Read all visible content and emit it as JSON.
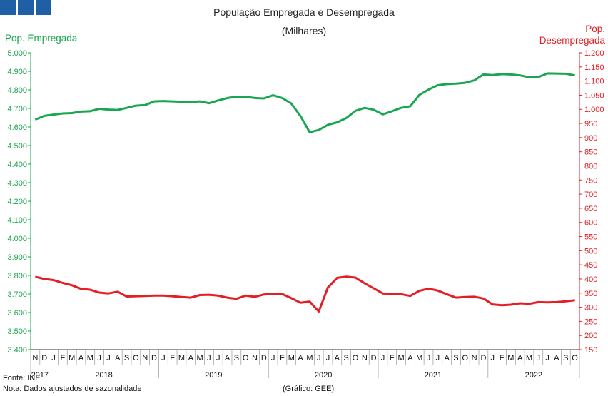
{
  "header": {
    "title": "População Empregada e Desempregada",
    "subtitle": "(Milhares)",
    "left_axis_label": "Pop. Empregada",
    "right_axis_label_line1": "Pop.",
    "right_axis_label_line2": "Desempregada"
  },
  "footer": {
    "source": "Fonte: INE",
    "note": "Nota: Dados ajustados de sazonalidade",
    "credit": "(Gráfico: GEE)"
  },
  "colors": {
    "employed": "#1aa650",
    "unemployed": "#e31e24",
    "logo": "#1f5fa5"
  },
  "chart_data": {
    "type": "line",
    "title": "População Empregada e Desempregada",
    "subtitle": "(Milhares)",
    "y_left": {
      "label": "Pop. Empregada",
      "range": [
        3400,
        5000
      ],
      "ticks": [
        "3.400",
        "3.500",
        "3.600",
        "3.700",
        "3.800",
        "3.900",
        "4.000",
        "4.100",
        "4.200",
        "4.300",
        "4.400",
        "4.500",
        "4.600",
        "4.700",
        "4.800",
        "4.900",
        "5.000"
      ]
    },
    "y_right": {
      "label": "Pop. Desempregada",
      "range": [
        150,
        1200
      ],
      "ticks": [
        "150",
        "200",
        "250",
        "300",
        "350",
        "400",
        "450",
        "500",
        "550",
        "600",
        "650",
        "700",
        "750",
        "800",
        "850",
        "900",
        "950",
        "1.000",
        "1.050",
        "1.100",
        "1.150",
        "1.200"
      ]
    },
    "x_month_labels": [
      "N",
      "D",
      "J",
      "F",
      "M",
      "A",
      "M",
      "J",
      "J",
      "A",
      "S",
      "O",
      "N",
      "D",
      "J",
      "F",
      "M",
      "A",
      "M",
      "J",
      "J",
      "A",
      "S",
      "O",
      "N",
      "D",
      "J",
      "F",
      "M",
      "A",
      "M",
      "J",
      "J",
      "A",
      "S",
      "O",
      "N",
      "D",
      "J",
      "F",
      "M",
      "A",
      "M",
      "J",
      "J",
      "A",
      "S",
      "O",
      "N",
      "D",
      "J",
      "F",
      "M",
      "A",
      "M",
      "J",
      "J",
      "A",
      "S",
      "O"
    ],
    "x_year_labels": [
      {
        "label": "2017",
        "start": 0,
        "end": 1
      },
      {
        "label": "2018",
        "start": 2,
        "end": 13
      },
      {
        "label": "2019",
        "start": 14,
        "end": 25
      },
      {
        "label": "2020",
        "start": 26,
        "end": 37
      },
      {
        "label": "2021",
        "start": 38,
        "end": 49
      },
      {
        "label": "2022",
        "start": 50,
        "end": 59
      }
    ],
    "grid": false,
    "series": [
      {
        "name": "Pop. Empregada",
        "axis": "left",
        "color": "#1aa650",
        "values": [
          4640,
          4660,
          4667,
          4673,
          4675,
          4683,
          4685,
          4698,
          4694,
          4692,
          4703,
          4715,
          4718,
          4738,
          4740,
          4738,
          4736,
          4735,
          4738,
          4728,
          4743,
          4756,
          4763,
          4763,
          4756,
          4754,
          4771,
          4756,
          4726,
          4659,
          4572,
          4584,
          4612,
          4625,
          4648,
          4687,
          4703,
          4693,
          4668,
          4685,
          4703,
          4712,
          4773,
          4801,
          4825,
          4831,
          4834,
          4838,
          4851,
          4883,
          4880,
          4885,
          4883,
          4878,
          4868,
          4869,
          4889,
          4888,
          4887,
          4878
        ]
      },
      {
        "name": "Pop. Desempregada",
        "axis": "right",
        "color": "#e31e24",
        "values": [
          408,
          400,
          396,
          386,
          378,
          365,
          362,
          352,
          349,
          355,
          338,
          339,
          340,
          341,
          341,
          339,
          336,
          334,
          343,
          344,
          341,
          334,
          330,
          341,
          337,
          345,
          348,
          347,
          332,
          316,
          320,
          285,
          370,
          404,
          408,
          405,
          385,
          367,
          349,
          347,
          346,
          340,
          358,
          366,
          359,
          346,
          334,
          336,
          337,
          331,
          310,
          307,
          309,
          314,
          312,
          318,
          317,
          318,
          321,
          325
        ]
      }
    ]
  }
}
